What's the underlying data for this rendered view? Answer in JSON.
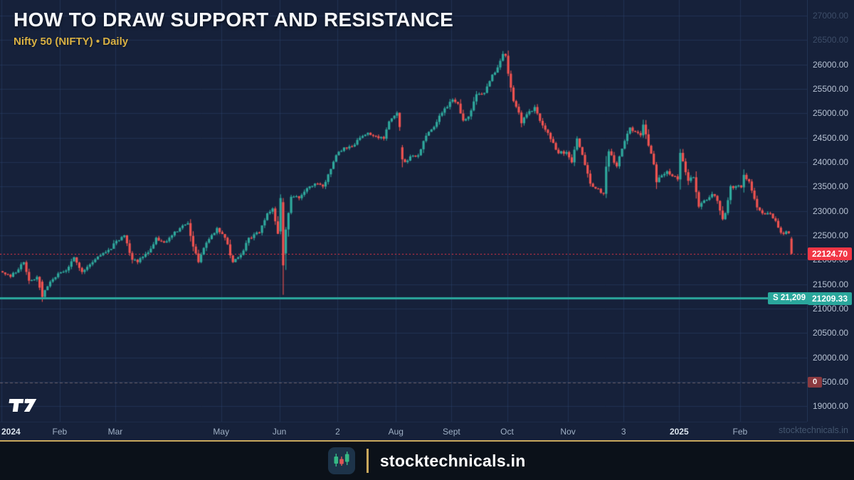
{
  "header": {
    "title": "HOW TO DRAW SUPPORT AND RESISTANCE",
    "symbol_line": "Nifty 50 (NIFTY) • Daily"
  },
  "watermark_text": "stocktechnicals.in",
  "footer": {
    "brand": "stocktechnicals.in",
    "logo_icon": "candlestick-logo-icon"
  },
  "colors": {
    "background": "#16213a",
    "grid": "rgba(44,66,104,0.55)",
    "candle_up": "#2fa99d",
    "candle_down": "#ef5350",
    "support": "#2aa79c",
    "last_price": "#f23645",
    "zero_line": "rgba(200,160,150,0.45)",
    "zero_badge": "#8c3a40",
    "accent_gold": "#c9a85c",
    "subtitle_gold": "#d9b144"
  },
  "chart_data": {
    "type": "candlestick",
    "symbol": "Nifty 50 (NIFTY)",
    "timeframe": "Daily",
    "days_total": 299,
    "y_axis": {
      "visible_range": [
        18900,
        27325
      ],
      "tick_step": 500,
      "labels": [
        {
          "value": 27000,
          "text": "27000.00",
          "dim": true
        },
        {
          "value": 26500,
          "text": "26500.00",
          "dim": true
        },
        {
          "value": 26000,
          "text": "26000.00"
        },
        {
          "value": 25500,
          "text": "25500.00"
        },
        {
          "value": 25000,
          "text": "25000.00"
        },
        {
          "value": 24500,
          "text": "24500.00"
        },
        {
          "value": 24000,
          "text": "24000.00"
        },
        {
          "value": 23500,
          "text": "23500.00"
        },
        {
          "value": 23000,
          "text": "23000.00"
        },
        {
          "value": 22500,
          "text": "22500.00"
        },
        {
          "value": 22000,
          "text": "22000.00"
        },
        {
          "value": 21500,
          "text": "21500.00"
        },
        {
          "value": 21000,
          "text": "21000.00"
        },
        {
          "value": 20500,
          "text": "20500.00"
        },
        {
          "value": 20000,
          "text": "20000.00"
        },
        {
          "value": 19500,
          "text": "19500.00"
        },
        {
          "value": 19000,
          "text": "19000.00"
        }
      ]
    },
    "x_axis": {
      "ticks": [
        {
          "label": "2024",
          "day": 0,
          "bold": true
        },
        {
          "label": "Feb",
          "day": 22
        },
        {
          "label": "Mar",
          "day": 43
        },
        {
          "label": "May",
          "day": 83
        },
        {
          "label": "Jun",
          "day": 105
        },
        {
          "label": "2",
          "day": 127
        },
        {
          "label": "Aug",
          "day": 149
        },
        {
          "label": "Sept",
          "day": 170
        },
        {
          "label": "Oct",
          "day": 191
        },
        {
          "label": "Nov",
          "day": 214
        },
        {
          "label": "3",
          "day": 235
        },
        {
          "label": "2025",
          "day": 256,
          "bold": true
        },
        {
          "label": "Feb",
          "day": 279
        }
      ]
    },
    "support_line": {
      "value": 21209.33,
      "pill_label": "S 21,209",
      "axis_label": "21209.33"
    },
    "last_price": {
      "value": 22124.7,
      "axis_label": "22124.70"
    },
    "zero_marker": {
      "label": "0",
      "value": 19490
    },
    "anchors": [
      [
        0,
        21740
      ],
      [
        3,
        21650
      ],
      [
        8,
        21950
      ],
      [
        10,
        21570
      ],
      [
        13,
        21650
      ],
      [
        15,
        21238
      ],
      [
        18,
        21550
      ],
      [
        21,
        21720
      ],
      [
        24,
        21780
      ],
      [
        27,
        22050
      ],
      [
        30,
        21750
      ],
      [
        34,
        21950
      ],
      [
        40,
        22200
      ],
      [
        44,
        22400
      ],
      [
        46,
        22500
      ],
      [
        49,
        22000
      ],
      [
        51,
        21950
      ],
      [
        55,
        22150
      ],
      [
        58,
        22450
      ],
      [
        61,
        22350
      ],
      [
        64,
        22500
      ],
      [
        68,
        22700
      ],
      [
        70,
        22750
      ],
      [
        72,
        22270
      ],
      [
        74,
        21950
      ],
      [
        77,
        22350
      ],
      [
        81,
        22650
      ],
      [
        84,
        22450
      ],
      [
        87,
        21950
      ],
      [
        90,
        22100
      ],
      [
        93,
        22450
      ],
      [
        97,
        22550
      ],
      [
        100,
        22950
      ],
      [
        102,
        23050
      ],
      [
        104,
        22530
      ],
      [
        105,
        23264
      ],
      [
        106,
        21884
      ],
      [
        107,
        22620
      ],
      [
        109,
        23290
      ],
      [
        112,
        23260
      ],
      [
        115,
        23465
      ],
      [
        118,
        23560
      ],
      [
        121,
        23500
      ],
      [
        124,
        23860
      ],
      [
        126,
        24140
      ],
      [
        129,
        24300
      ],
      [
        132,
        24320
      ],
      [
        135,
        24500
      ],
      [
        138,
        24600
      ],
      [
        141,
        24530
      ],
      [
        144,
        24479
      ],
      [
        146,
        24834
      ],
      [
        148,
        24951
      ],
      [
        149,
        25011
      ],
      [
        150,
        24718
      ],
      [
        151,
        24056
      ],
      [
        152,
        24001
      ],
      [
        154,
        24117
      ],
      [
        157,
        24139
      ],
      [
        160,
        24541
      ],
      [
        164,
        24823
      ],
      [
        166,
        25011
      ],
      [
        169,
        25236
      ],
      [
        170,
        25279
      ],
      [
        172,
        25198
      ],
      [
        174,
        24852
      ],
      [
        176,
        24936
      ],
      [
        179,
        25389
      ],
      [
        182,
        25418
      ],
      [
        185,
        25791
      ],
      [
        187,
        25940
      ],
      [
        189,
        26216
      ],
      [
        190,
        26179
      ],
      [
        191,
        25811
      ],
      [
        193,
        25250
      ],
      [
        195,
        25015
      ],
      [
        196,
        24796
      ],
      [
        198,
        24982
      ],
      [
        201,
        25128
      ],
      [
        204,
        24750
      ],
      [
        207,
        24472
      ],
      [
        210,
        24180
      ],
      [
        213,
        24205
      ],
      [
        215,
        23995
      ],
      [
        217,
        24484
      ],
      [
        219,
        24148
      ],
      [
        222,
        23559
      ],
      [
        225,
        23454
      ],
      [
        227,
        23350
      ],
      [
        228,
        23907
      ],
      [
        229,
        24221
      ],
      [
        232,
        23914
      ],
      [
        234,
        24276
      ],
      [
        237,
        24708
      ],
      [
        239,
        24619
      ],
      [
        241,
        24548
      ],
      [
        242,
        24768
      ],
      [
        244,
        24336
      ],
      [
        246,
        23952
      ],
      [
        247,
        23588
      ],
      [
        249,
        23728
      ],
      [
        251,
        23813
      ],
      [
        255,
        23645
      ],
      [
        256,
        24189
      ],
      [
        259,
        23616
      ],
      [
        261,
        23689
      ],
      [
        263,
        23086
      ],
      [
        265,
        23213
      ],
      [
        268,
        23345
      ],
      [
        270,
        23205
      ],
      [
        272,
        22829
      ],
      [
        273,
        22957
      ],
      [
        275,
        23508
      ],
      [
        279,
        23482
      ],
      [
        280,
        23739
      ],
      [
        282,
        23603
      ],
      [
        285,
        23072
      ],
      [
        288,
        22929
      ],
      [
        290,
        22945
      ],
      [
        292,
        22796
      ],
      [
        294,
        22553
      ],
      [
        297,
        22545
      ],
      [
        298,
        22124.7
      ]
    ],
    "special_candles": {
      "15": [
        21550,
        21590,
        21137,
        21238
      ],
      "105": [
        22580,
        23340,
        22520,
        23264
      ],
      "106": [
        23179,
        23264,
        21281,
        21884
      ],
      "107": [
        22128,
        22670,
        21791,
        22620
      ],
      "151": [
        24303,
        24350,
        23893,
        24056
      ],
      "298": [
        22433,
        22470,
        22105,
        22124.7
      ]
    }
  }
}
